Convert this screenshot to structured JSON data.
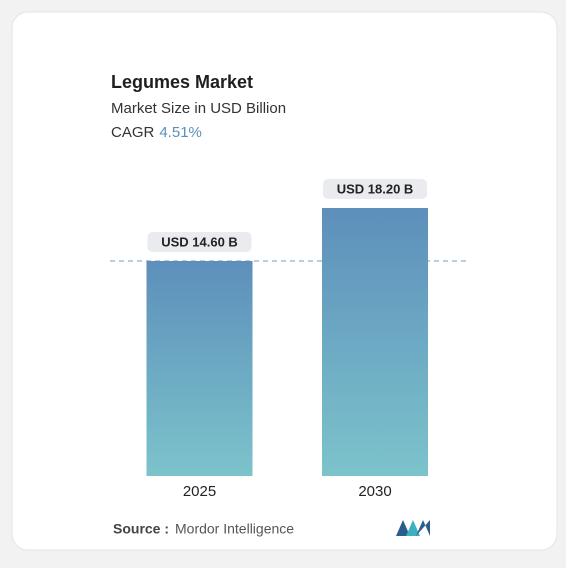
{
  "chart_data": {
    "type": "bar",
    "title": "Legumes Market",
    "subtitle": "Market Size in USD Billion",
    "cagr_label": "CAGR",
    "cagr_value": "4.51%",
    "categories": [
      "2025",
      "2030"
    ],
    "values": [
      14.6,
      18.2
    ],
    "value_labels": [
      "USD 14.60 B",
      "USD 18.20 B"
    ],
    "source_label": "Source :",
    "source": "Mordor Intelligence"
  }
}
